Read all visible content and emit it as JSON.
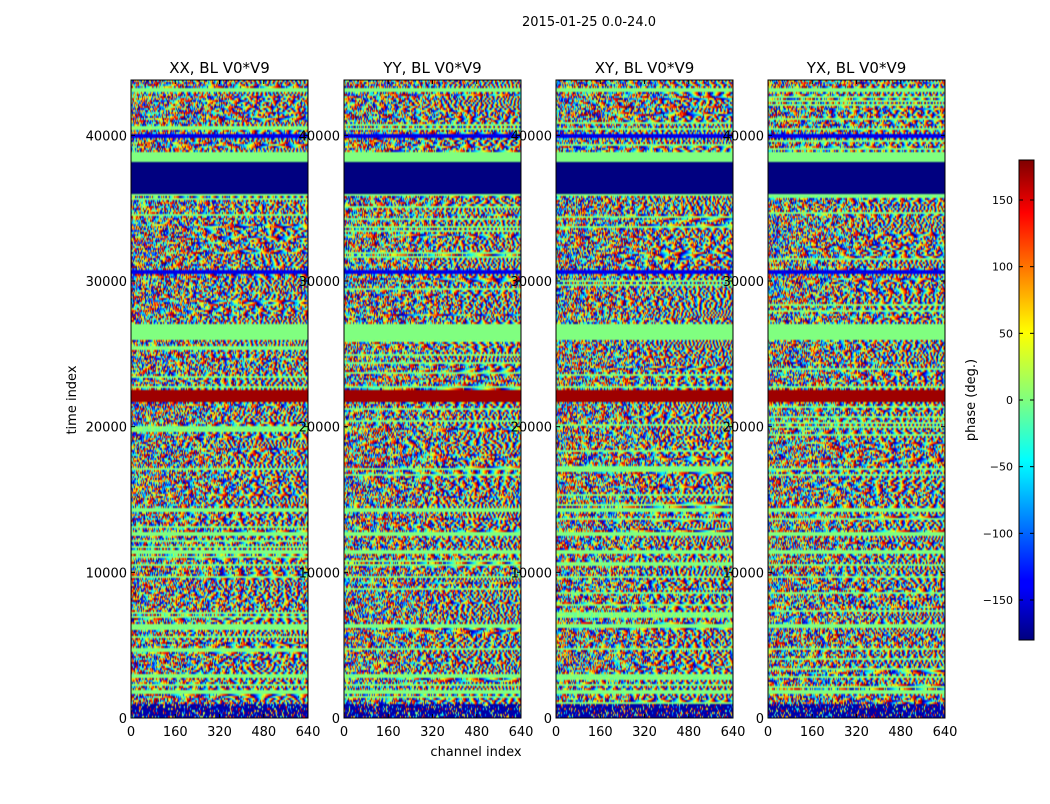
{
  "chart_data": {
    "type": "heatmap",
    "suptitle": "2015-01-25 0.0-24.0",
    "xlabel": "channel index",
    "ylabel": "time index",
    "xlim": [
      0,
      640
    ],
    "ylim": [
      0,
      43800
    ],
    "xticks": [
      0,
      160,
      320,
      480,
      640
    ],
    "yticks": [
      0,
      10000,
      20000,
      30000,
      40000
    ],
    "colormap": "jet",
    "panels": [
      {
        "title": "XX, BL V0*V9",
        "polarization": "XX"
      },
      {
        "title": "YY, BL V0*V9",
        "polarization": "YY"
      },
      {
        "title": "XY, BL V0*V9",
        "polarization": "XY"
      },
      {
        "title": "YX, BL V0*V9",
        "polarization": "YX"
      }
    ],
    "bands": [
      {
        "from": 0,
        "to": 900,
        "kind": "noisy_dark"
      },
      {
        "from": 1700,
        "to": 1900,
        "kind": "gap"
      },
      {
        "from": 2700,
        "to": 2900,
        "kind": "gap"
      },
      {
        "from": 4600,
        "to": 4800,
        "kind": "gap"
      },
      {
        "from": 6200,
        "to": 6500,
        "kind": "gap"
      },
      {
        "from": 9600,
        "to": 9800,
        "kind": "gap"
      },
      {
        "from": 10400,
        "to": 10600,
        "kind": "gap"
      },
      {
        "from": 11300,
        "to": 11500,
        "kind": "gap"
      },
      {
        "from": 12500,
        "to": 12800,
        "kind": "gap"
      },
      {
        "from": 14200,
        "to": 14400,
        "kind": "gap"
      },
      {
        "from": 17000,
        "to": 17200,
        "kind": "gap"
      },
      {
        "from": 21700,
        "to": 22500,
        "kind": "flat_red"
      },
      {
        "from": 22500,
        "to": 23200,
        "kind": "noisy"
      },
      {
        "from": 26000,
        "to": 27000,
        "kind": "gap"
      },
      {
        "from": 30500,
        "to": 30800,
        "kind": "flat_blue"
      },
      {
        "from": 35800,
        "to": 36000,
        "kind": "gap"
      },
      {
        "from": 36000,
        "to": 38200,
        "kind": "flat_dark"
      },
      {
        "from": 38200,
        "to": 38800,
        "kind": "gap"
      },
      {
        "from": 39800,
        "to": 40100,
        "kind": "flat_blue"
      },
      {
        "from": 43000,
        "to": 43300,
        "kind": "gap"
      }
    ],
    "colorbar": {
      "label": "phase (deg.)",
      "range": [
        -180,
        180
      ],
      "ticks": [
        -150,
        -100,
        -50,
        0,
        50,
        100,
        150
      ],
      "tick_labels": [
        "−150",
        "−100",
        "−50",
        "0",
        "50",
        "100",
        "150"
      ]
    }
  }
}
